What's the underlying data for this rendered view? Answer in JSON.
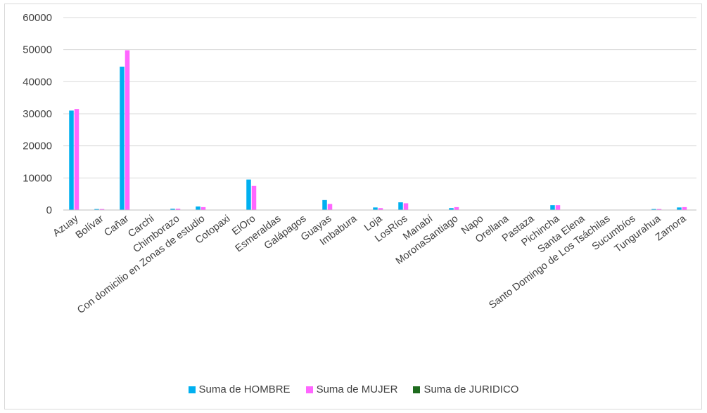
{
  "chart_data": {
    "type": "bar",
    "categories": [
      "Azuay",
      "Bolívar",
      "Cañar",
      "Carchi",
      "Chimborazo",
      "Con domicilio en Zonas de estudio",
      "Cotopaxi",
      "ElOro",
      "Esmeraldas",
      "Galápagos",
      "Guayas",
      "Imbabura",
      "Loja",
      "LosRíos",
      "Manabí",
      "MoronaSantiago",
      "Napo",
      "Orellana",
      "Pastaza",
      "Pichincha",
      "Santa Elena",
      "Santo Domingo de Los Tsáchilas",
      "Sucumbíos",
      "Tungurahua",
      "Zamora"
    ],
    "series": [
      {
        "name": "Suma de HOMBRE",
        "color": "#00b0f0",
        "values": [
          31000,
          300,
          44700,
          0,
          400,
          1100,
          0,
          9500,
          0,
          0,
          3100,
          0,
          800,
          2400,
          0,
          600,
          0,
          0,
          0,
          1500,
          0,
          0,
          0,
          300,
          800
        ]
      },
      {
        "name": "Suma de MUJER",
        "color": "#ff66ff",
        "values": [
          31500,
          300,
          49800,
          0,
          400,
          900,
          0,
          7500,
          0,
          0,
          1900,
          0,
          600,
          2100,
          0,
          900,
          0,
          0,
          0,
          1500,
          0,
          0,
          0,
          300,
          900
        ]
      },
      {
        "name": "Suma de JURIDICO",
        "color": "#1e6b1e",
        "values": [
          0,
          0,
          0,
          0,
          0,
          0,
          0,
          0,
          0,
          0,
          0,
          0,
          0,
          0,
          0,
          0,
          0,
          0,
          0,
          0,
          0,
          0,
          0,
          0,
          0
        ]
      }
    ],
    "y_ticks": [
      "0",
      "10000",
      "20000",
      "30000",
      "40000",
      "50000",
      "60000"
    ],
    "ylim": [
      0,
      60000
    ],
    "grid": true,
    "legend_position": "bottom"
  }
}
